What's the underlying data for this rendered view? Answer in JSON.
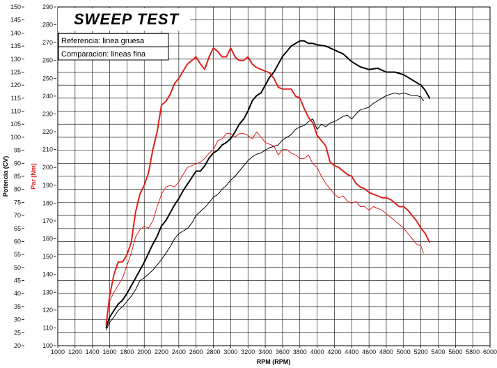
{
  "chart_data": {
    "type": "line",
    "title": "SWEEP TEST",
    "xlabel": "RPM (RPM)",
    "ylabel_left": "Potencia (CV)",
    "ylabel_right": "Par (Nm)",
    "x_range": [
      1000,
      6000
    ],
    "x_ticks": [
      "1000",
      "1200",
      "1400",
      "1600",
      "1800",
      "2000",
      "2200",
      "2400",
      "2600",
      "2800",
      "3000",
      "3200",
      "3400",
      "3600",
      "3800",
      "4000",
      "4200",
      "4400",
      "4600",
      "4800",
      "5000",
      "5200",
      "5400",
      "5600",
      "5800",
      "6000"
    ],
    "y_left_range": [
      20,
      150
    ],
    "y_left_ticks": [
      "20",
      "25",
      "30",
      "35",
      "40",
      "45",
      "50",
      "55",
      "60",
      "65",
      "70",
      "75",
      "80",
      "85",
      "90",
      "95",
      "100",
      "105",
      "110",
      "115",
      "120",
      "125",
      "130",
      "135",
      "140",
      "145",
      "150"
    ],
    "y_right_range": [
      100,
      290
    ],
    "y_right_ticks": [
      "100",
      "110",
      "120",
      "130",
      "140",
      "150",
      "160",
      "170",
      "180",
      "190",
      "200",
      "210",
      "220",
      "230",
      "240",
      "250",
      "260",
      "270",
      "280",
      "290"
    ],
    "grid": true,
    "legend": [
      "Referencia: linea gruesa",
      "Comparacion: lineas fina"
    ],
    "colors": {
      "power": "#000000",
      "torque": "#e0201b",
      "grid": "#000000"
    },
    "series": [
      {
        "quantity": "power",
        "axis": "left",
        "style": "thick",
        "x": [
          1560,
          1600,
          1650,
          1700,
          1750,
          1800,
          1850,
          1900,
          1950,
          2000,
          2050,
          2100,
          2150,
          2200,
          2250,
          2300,
          2350,
          2400,
          2450,
          2500,
          2550,
          2600,
          2650,
          2700,
          2750,
          2800,
          2850,
          2900,
          2950,
          3000,
          3050,
          3100,
          3150,
          3200,
          3250,
          3300,
          3350,
          3400,
          3450,
          3500,
          3550,
          3600,
          3650,
          3700,
          3750,
          3800,
          3850,
          3900,
          3950,
          4000,
          4100,
          4200,
          4300,
          4400,
          4500,
          4600,
          4700,
          4800,
          4900,
          5000,
          5100,
          5200,
          5250,
          5300
        ],
        "y": [
          27,
          31,
          33.5,
          36,
          37.5,
          40,
          43,
          46,
          49,
          52,
          55.5,
          59,
          62,
          66,
          68,
          71,
          74,
          76.5,
          79.5,
          82,
          84.5,
          87,
          87,
          89,
          92,
          94,
          95,
          97,
          98,
          99.5,
          102,
          105,
          107,
          110,
          114,
          116,
          117,
          120,
          123,
          125,
          128,
          131,
          133,
          135,
          136,
          137,
          137,
          136,
          136,
          135.5,
          135,
          133.5,
          132,
          129,
          127,
          126,
          126.5,
          125,
          125,
          124,
          122,
          120,
          118,
          115
        ]
      },
      {
        "quantity": "power",
        "axis": "left",
        "style": "thin",
        "x": [
          1560,
          1600,
          1650,
          1700,
          1750,
          1800,
          1850,
          1900,
          1950,
          2000,
          2050,
          2100,
          2150,
          2200,
          2250,
          2300,
          2350,
          2400,
          2450,
          2500,
          2550,
          2600,
          2650,
          2700,
          2750,
          2800,
          2850,
          2900,
          2950,
          3000,
          3050,
          3100,
          3150,
          3200,
          3250,
          3300,
          3350,
          3400,
          3450,
          3500,
          3550,
          3600,
          3650,
          3700,
          3750,
          3800,
          3850,
          3900,
          3950,
          4000,
          4050,
          4100,
          4150,
          4200,
          4250,
          4300,
          4350,
          4400,
          4450,
          4500,
          4550,
          4600,
          4650,
          4700,
          4750,
          4800,
          4850,
          4900,
          4950,
          5000,
          5050,
          5100,
          5150,
          5200,
          5230
        ],
        "y": [
          26,
          29,
          31,
          33.5,
          35,
          37,
          39,
          41.5,
          45,
          46,
          47.5,
          49,
          51,
          53,
          55.5,
          58,
          61,
          63,
          64,
          65,
          67,
          70,
          71.5,
          73,
          75,
          77,
          78,
          80,
          81.5,
          83.5,
          85,
          87,
          89,
          91,
          92.5,
          93.5,
          94,
          95,
          96,
          96.5,
          97,
          99,
          100,
          101,
          103,
          104,
          104.5,
          106,
          107,
          103,
          105,
          104,
          105.5,
          106,
          107,
          108,
          108.5,
          107,
          109,
          110.5,
          111,
          111.5,
          113,
          114,
          115,
          116,
          116.5,
          117,
          116.5,
          117,
          116.5,
          116,
          116,
          115.5,
          114
        ]
      },
      {
        "quantity": "torque",
        "axis": "right",
        "style": "thick",
        "x": [
          1560,
          1600,
          1650,
          1700,
          1750,
          1800,
          1850,
          1900,
          1950,
          2000,
          2050,
          2100,
          2150,
          2200,
          2250,
          2300,
          2350,
          2400,
          2450,
          2500,
          2550,
          2600,
          2650,
          2700,
          2750,
          2800,
          2850,
          2900,
          2950,
          3000,
          3050,
          3100,
          3150,
          3200,
          3250,
          3300,
          3350,
          3400,
          3450,
          3500,
          3550,
          3600,
          3650,
          3700,
          3750,
          3800,
          3850,
          3900,
          3950,
          4000,
          4050,
          4100,
          4150,
          4200,
          4250,
          4300,
          4350,
          4400,
          4450,
          4500,
          4550,
          4600,
          4650,
          4700,
          4750,
          4800,
          4850,
          4900,
          4950,
          5000,
          5050,
          5100,
          5150,
          5200,
          5250,
          5300
        ],
        "y": [
          112,
          128,
          140,
          147,
          147,
          151,
          158,
          175,
          185,
          190,
          197,
          210,
          220,
          235,
          237,
          241,
          247,
          250,
          254,
          258,
          260,
          262,
          258,
          255,
          262,
          267,
          265,
          262,
          262,
          267,
          262,
          260,
          260,
          262,
          258,
          256,
          255,
          254,
          253,
          250,
          245,
          244,
          244,
          244,
          240,
          239,
          233,
          228,
          225,
          218,
          215,
          212,
          203,
          201,
          200,
          198,
          196,
          195,
          191,
          189,
          188,
          186,
          185,
          184,
          183,
          183,
          182,
          180,
          178,
          178,
          176,
          173,
          170,
          166,
          163,
          158
        ]
      },
      {
        "quantity": "torque",
        "axis": "right",
        "style": "thin",
        "x": [
          1560,
          1600,
          1650,
          1700,
          1750,
          1800,
          1850,
          1900,
          1950,
          2000,
          2050,
          2100,
          2150,
          2200,
          2250,
          2300,
          2350,
          2400,
          2450,
          2500,
          2550,
          2600,
          2650,
          2700,
          2750,
          2800,
          2850,
          2900,
          2950,
          3000,
          3050,
          3100,
          3150,
          3200,
          3250,
          3300,
          3350,
          3400,
          3450,
          3500,
          3550,
          3600,
          3650,
          3700,
          3750,
          3800,
          3850,
          3900,
          3950,
          4000,
          4050,
          4100,
          4150,
          4200,
          4250,
          4300,
          4350,
          4400,
          4450,
          4500,
          4550,
          4600,
          4650,
          4700,
          4750,
          4800,
          4850,
          4900,
          4950,
          5000,
          5050,
          5100,
          5150,
          5200,
          5230
        ],
        "y": [
          112,
          125,
          130,
          134,
          138,
          145,
          152,
          161,
          165,
          167,
          166,
          170,
          178,
          185,
          189,
          190,
          189,
          192,
          196,
          200,
          201,
          202,
          203,
          205,
          208,
          210,
          215,
          216,
          219,
          219,
          217,
          219,
          219,
          218,
          216,
          220,
          217,
          214,
          213,
          212,
          207,
          210,
          210,
          208,
          207,
          205,
          205,
          207,
          202,
          200,
          195,
          191,
          188,
          185,
          183,
          184,
          181,
          180,
          181,
          178,
          178,
          176,
          178,
          177,
          176,
          174,
          172,
          170,
          168,
          166,
          163,
          160,
          157,
          156,
          152
        ]
      }
    ]
  }
}
